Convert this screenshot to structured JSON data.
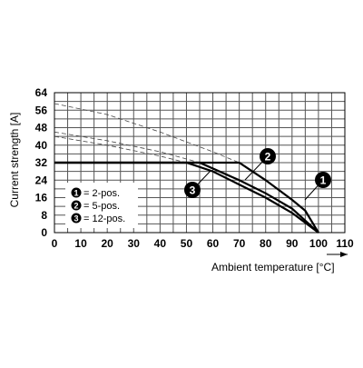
{
  "chart_data": {
    "type": "line",
    "x_label": "Ambient temperature [°C]",
    "y_label": "Current strength [A]",
    "xlim": [
      0,
      110
    ],
    "ylim": [
      0,
      64
    ],
    "xticks": [
      0,
      10,
      20,
      30,
      40,
      50,
      60,
      70,
      80,
      90,
      100,
      110
    ],
    "yticks": [
      0,
      8,
      16,
      24,
      32,
      40,
      48,
      56,
      64
    ],
    "grid": true,
    "color": "#000000",
    "series": [
      {
        "marker": "1",
        "name": "= 2-pos.",
        "x": [
          0,
          70,
          80,
          90,
          95,
          100
        ],
        "values": [
          32,
          32,
          24,
          15,
          10,
          0
        ],
        "dashed_x": [
          0,
          20,
          40,
          60,
          70
        ],
        "dashed_values": [
          59,
          54,
          46,
          37,
          32
        ]
      },
      {
        "marker": "2",
        "name": "= 5-pos.",
        "x": [
          0,
          55,
          70,
          80,
          90,
          100
        ],
        "values": [
          32,
          32,
          24,
          18,
          11,
          0
        ],
        "dashed_x": [
          0,
          20,
          40,
          55
        ],
        "dashed_values": [
          46,
          42,
          37,
          32
        ]
      },
      {
        "marker": "3",
        "name": "= 12-pos.",
        "x": [
          0,
          50,
          60,
          70,
          80,
          90,
          100
        ],
        "values": [
          32,
          32,
          28,
          22,
          16,
          9,
          0
        ],
        "dashed_x": [
          0,
          20,
          40,
          50
        ],
        "dashed_values": [
          44,
          40,
          35,
          32
        ]
      }
    ]
  }
}
